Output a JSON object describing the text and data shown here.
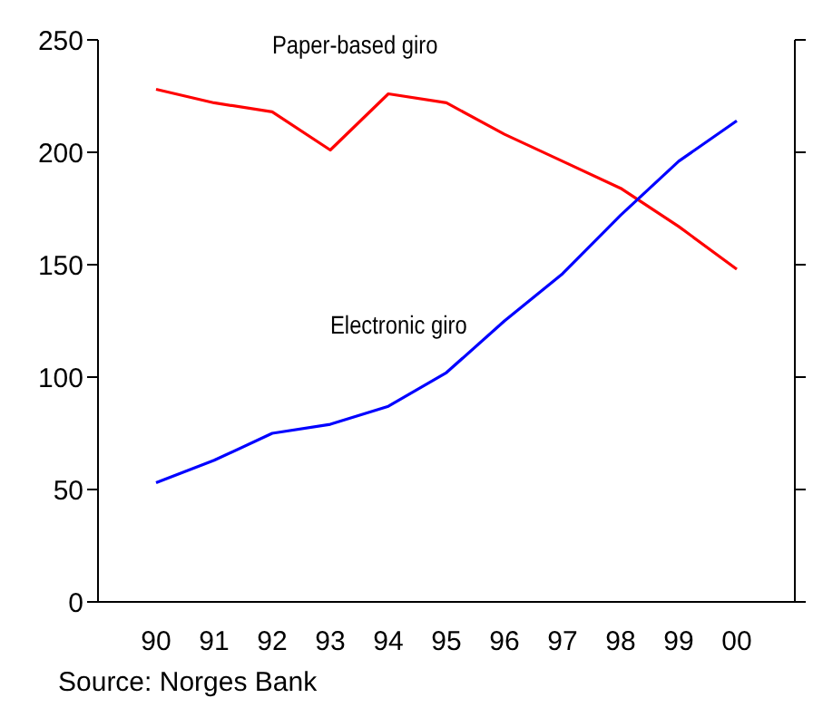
{
  "chart_data": {
    "type": "line",
    "categories": [
      "90",
      "91",
      "92",
      "93",
      "94",
      "95",
      "96",
      "97",
      "98",
      "99",
      "00"
    ],
    "series": [
      {
        "name": "Paper-based giro",
        "color": "#ff0000",
        "values": [
          228,
          222,
          218,
          201,
          226,
          222,
          208,
          196,
          184,
          167,
          148
        ]
      },
      {
        "name": "Electronic giro",
        "color": "#0000ff",
        "values": [
          53,
          63,
          75,
          79,
          87,
          102,
          125,
          146,
          172,
          196,
          214
        ]
      }
    ],
    "ylim": [
      0,
      250
    ],
    "yticks": [
      0,
      50,
      100,
      150,
      200,
      250
    ],
    "grid": false,
    "legend": false,
    "marker": "none",
    "line_style": "solid",
    "annotations": [
      "Source: Norges Bank"
    ]
  }
}
